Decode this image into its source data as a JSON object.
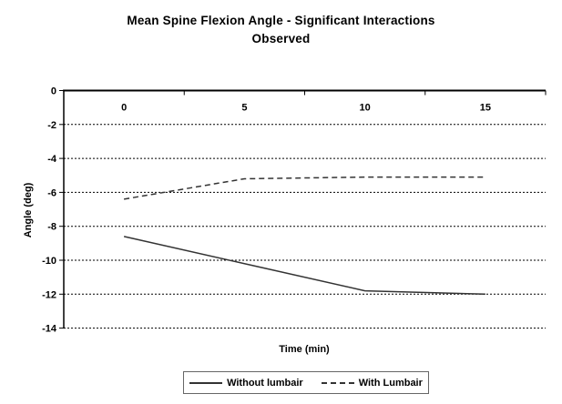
{
  "title": {
    "line1": "Mean Spine Flexion Angle - Significant Interactions",
    "line2": "Observed"
  },
  "chart_data": {
    "type": "line",
    "categories": [
      "0",
      "5",
      "10",
      "15"
    ],
    "series": [
      {
        "name": "Without lumbair",
        "style": "solid",
        "values": [
          -8.6,
          -10.2,
          -11.8,
          -12.0
        ]
      },
      {
        "name": "With Lumbair",
        "style": "dashed",
        "values": [
          -6.4,
          -5.2,
          -5.1,
          -5.1
        ]
      }
    ],
    "xlabel": "Time (min)",
    "ylabel": "Angle (deg)",
    "ylim": [
      -14,
      0
    ],
    "yticks": [
      "0",
      "-2",
      "-4",
      "-6",
      "-8",
      "-10",
      "-12",
      "-14"
    ],
    "grid": "horizontal dashed",
    "legend_position": "bottom"
  },
  "colors": {
    "background": "#ffffff",
    "text": "#000000",
    "axis": "#000000",
    "grid": "#000000",
    "series_line": "#333333",
    "legend_border": "#666666"
  }
}
